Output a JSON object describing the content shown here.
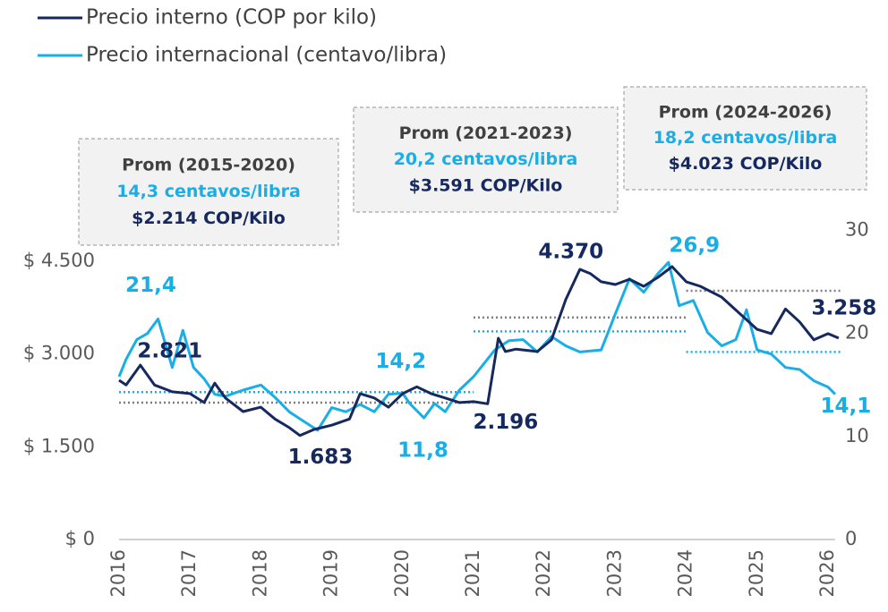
{
  "chart_data": {
    "type": "line",
    "legend": "top-left",
    "xlim": [
      2016,
      2026.2
    ],
    "xticks": [
      2016,
      2017,
      2018,
      2019,
      2020,
      2021,
      2022,
      2023,
      2024,
      2025,
      2026
    ],
    "ylim": [
      0,
      5000
    ],
    "yticks": [
      {
        "value": 0,
        "label": "$ 0"
      },
      {
        "value": 1500,
        "label": "$ 1.500"
      },
      {
        "value": 3000,
        "label": "$ 3.000"
      },
      {
        "value": 4500,
        "label": "$ 4.500"
      }
    ],
    "y2lim": [
      0,
      30
    ],
    "y2ticks": [
      0,
      10,
      20,
      30
    ],
    "series": [
      {
        "name": "Precio interno (COP por kilo)",
        "color": "#16295e",
        "average_color": "#7f7f7f",
        "axis": "y",
        "x": [
          2016.0,
          2016.1,
          2016.3,
          2016.5,
          2016.75,
          2017.0,
          2017.2,
          2017.35,
          2017.5,
          2017.75,
          2018.0,
          2018.2,
          2018.4,
          2018.55,
          2018.75,
          2019.0,
          2019.25,
          2019.4,
          2019.6,
          2019.8,
          2020.0,
          2020.2,
          2020.4,
          2020.6,
          2020.8,
          2021.0,
          2021.2,
          2021.35,
          2021.45,
          2021.6,
          2021.9,
          2022.1,
          2022.3,
          2022.5,
          2022.65,
          2022.8,
          2023.0,
          2023.2,
          2023.4,
          2023.6,
          2023.8,
          2024.0,
          2024.2,
          2024.5,
          2024.75,
          2025.0,
          2025.2,
          2025.4,
          2025.6,
          2025.8,
          2026.0,
          2026.15
        ],
        "values": [
          2576,
          2500,
          2821,
          2500,
          2390,
          2360,
          2215,
          2530,
          2290,
          2070,
          2140,
          1950,
          1810,
          1683,
          1780,
          1850,
          1950,
          2360,
          2290,
          2140,
          2360,
          2470,
          2360,
          2290,
          2215,
          2230,
          2196,
          3256,
          3040,
          3080,
          3040,
          3230,
          3880,
          4370,
          4300,
          4170,
          4125,
          4210,
          4095,
          4240,
          4414,
          4170,
          4095,
          3920,
          3660,
          3400,
          3330,
          3730,
          3520,
          3230,
          3330,
          3258
        ],
        "value_labels": [
          null,
          null,
          "2.821",
          null,
          null,
          null,
          null,
          null,
          null,
          null,
          null,
          null,
          null,
          "1.683",
          null,
          null,
          null,
          null,
          null,
          null,
          null,
          null,
          null,
          null,
          null,
          null,
          "2.196",
          null,
          null,
          null,
          null,
          null,
          null,
          "4.370",
          null,
          null,
          null,
          null,
          null,
          null,
          null,
          null,
          null,
          null,
          null,
          null,
          null,
          null,
          null,
          null,
          null,
          "3.258"
        ]
      },
      {
        "name": "Precio internacional (centavo/libra)",
        "color": "#1aaee6",
        "average_color": "#1aaee6",
        "axis": "y2",
        "x": [
          2016.0,
          2016.1,
          2016.25,
          2016.4,
          2016.55,
          2016.75,
          2016.9,
          2017.05,
          2017.2,
          2017.35,
          2017.5,
          2017.75,
          2018.0,
          2018.2,
          2018.4,
          2018.6,
          2018.8,
          2019.0,
          2019.2,
          2019.4,
          2019.6,
          2019.8,
          2020.0,
          2020.1,
          2020.3,
          2020.45,
          2020.6,
          2020.8,
          2021.0,
          2021.15,
          2021.3,
          2021.5,
          2021.7,
          2021.9,
          2022.1,
          2022.3,
          2022.5,
          2022.8,
          2023.0,
          2023.2,
          2023.4,
          2023.6,
          2023.75,
          2023.9,
          2024.1,
          2024.3,
          2024.5,
          2024.7,
          2024.85,
          2025.0,
          2025.2,
          2025.4,
          2025.6,
          2025.8,
          2026.0,
          2026.1
        ],
        "values": [
          15.8,
          17.5,
          19.4,
          20.0,
          21.4,
          16.7,
          20.3,
          16.7,
          15.6,
          14.1,
          13.9,
          14.5,
          15.0,
          13.8,
          12.4,
          11.5,
          10.6,
          12.8,
          12.4,
          13.1,
          12.4,
          14.1,
          14.2,
          13.2,
          11.8,
          13.2,
          12.4,
          14.5,
          15.8,
          17.1,
          18.4,
          19.3,
          19.4,
          18.2,
          19.7,
          18.8,
          18.2,
          18.4,
          21.9,
          25.3,
          24.0,
          25.8,
          26.9,
          22.7,
          23.2,
          20.1,
          18.8,
          19.4,
          22.3,
          18.4,
          18.0,
          16.7,
          16.5,
          15.4,
          14.8,
          14.1
        ],
        "value_labels": [
          null,
          null,
          null,
          null,
          "21,4",
          null,
          null,
          null,
          null,
          null,
          null,
          null,
          null,
          null,
          null,
          null,
          null,
          null,
          null,
          null,
          null,
          null,
          "14,2",
          null,
          "11,8",
          null,
          null,
          null,
          null,
          null,
          null,
          null,
          null,
          null,
          null,
          null,
          null,
          null,
          null,
          null,
          null,
          null,
          "26,9",
          null,
          null,
          null,
          null,
          null,
          null,
          null,
          null,
          null,
          null,
          null,
          null,
          "14,1"
        ]
      }
    ],
    "periods": [
      {
        "title": "Prom (2015-2020)",
        "international": 14.3,
        "international_label": "14,3 centavos/libra",
        "domestic": 2214,
        "domestic_label": "$2.214 COP/Kilo"
      },
      {
        "title": "Prom (2021-2023)",
        "international": 20.2,
        "international_label": "20,2 centavos/libra",
        "domestic": 3591,
        "domestic_label": "$3.591 COP/Kilo"
      },
      {
        "title": "Prom (2024-2026)",
        "international": 18.2,
        "international_label": "18,2 centavos/libra",
        "domestic": 4023,
        "domestic_label": "$4.023 COP/Kilo"
      }
    ]
  }
}
